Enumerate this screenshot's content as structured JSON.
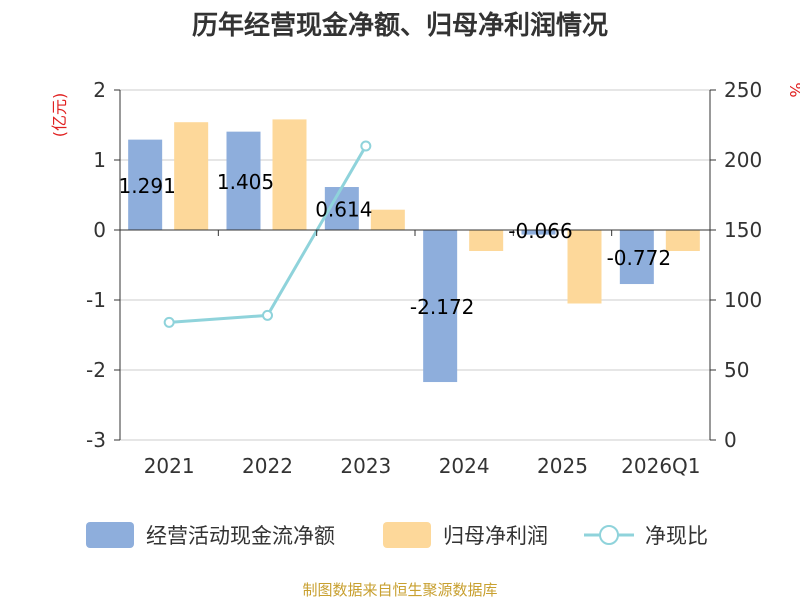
{
  "chart_data": {
    "type": "bar",
    "title": "历年经营现金净额、归母净利润情况",
    "categories": [
      "2021",
      "2022",
      "2023",
      "2024",
      "2025",
      "2026Q1"
    ],
    "y_left": {
      "unit_label": "(亿元)",
      "min": -3,
      "max": 2,
      "ticks": [
        "2",
        "1",
        "0",
        "-1",
        "-2",
        "-3"
      ]
    },
    "y_right": {
      "unit_label": "%",
      "min": 0,
      "max": 250,
      "ticks": [
        "250",
        "200",
        "150",
        "100",
        "50",
        "0"
      ]
    },
    "series": [
      {
        "name": "经营活动现金流净额",
        "type": "bar",
        "axis": "left",
        "values": [
          1.291,
          1.405,
          0.614,
          -2.172,
          -0.066,
          -0.772
        ],
        "data_labels": [
          "1.291",
          "1.405",
          "0.614",
          "-2.172",
          "-0.066",
          "-0.772"
        ]
      },
      {
        "name": "归母净利润",
        "type": "bar",
        "axis": "left",
        "values": [
          1.54,
          1.58,
          0.29,
          -0.3,
          -1.05,
          -0.3
        ]
      },
      {
        "name": "净现比",
        "type": "line",
        "axis": "right",
        "values": [
          84,
          89,
          210,
          null,
          null,
          null
        ]
      }
    ],
    "grid": true,
    "legend_position": "bottom",
    "colors": {
      "cash": "#8eaedc",
      "profit": "#fdd89a",
      "ratio": "#8fd3db",
      "unit_left": "#e02020",
      "unit_right": "#e02020",
      "source": "#c8a030"
    }
  },
  "source_text": "制图数据来自恒生聚源数据库"
}
